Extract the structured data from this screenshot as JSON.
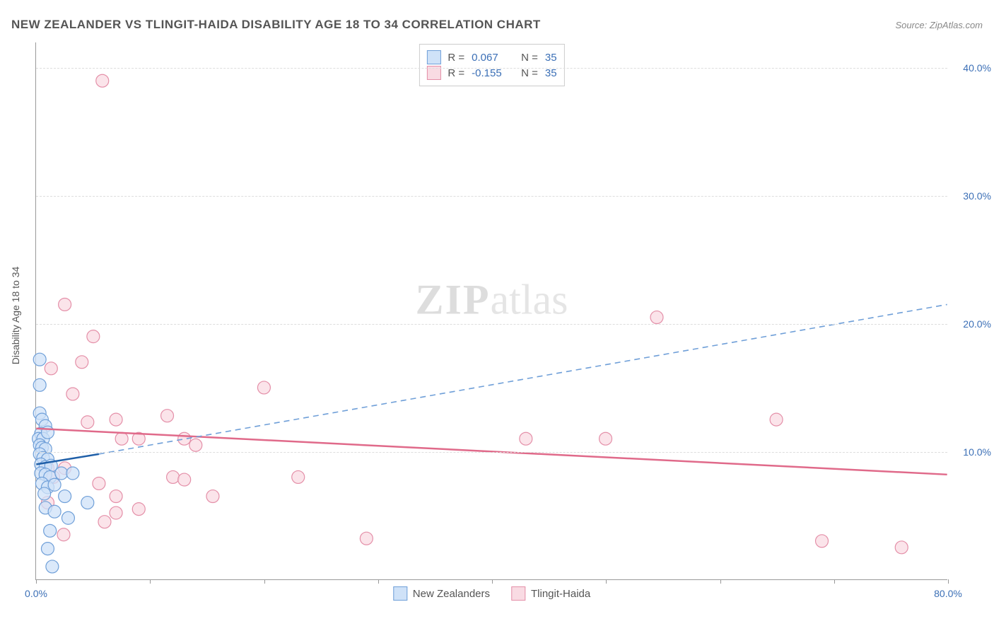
{
  "title": "NEW ZEALANDER VS TLINGIT-HAIDA DISABILITY AGE 18 TO 34 CORRELATION CHART",
  "source": "Source: ZipAtlas.com",
  "y_axis_label": "Disability Age 18 to 34",
  "watermark_a": "ZIP",
  "watermark_b": "atlas",
  "chart": {
    "type": "scatter",
    "xlim": [
      0,
      80
    ],
    "ylim": [
      0,
      42
    ],
    "x_ticks": [
      0,
      10,
      20,
      30,
      40,
      50,
      60,
      70,
      80
    ],
    "x_tick_labels_shown": {
      "0": "0.0%",
      "80": "80.0%"
    },
    "y_ticks": [
      10,
      20,
      30,
      40
    ],
    "y_tick_labels": {
      "10": "10.0%",
      "20": "20.0%",
      "30": "30.0%",
      "40": "40.0%"
    },
    "grid_color": "#dddddd",
    "axis_color": "#999999",
    "background_color": "#ffffff",
    "tick_label_color": "#3b6fb6",
    "tick_fontsize": 14,
    "title_fontsize": 17,
    "title_color": "#555555"
  },
  "stat_legend": {
    "rows": [
      {
        "swatch": "blue",
        "r_label": "R =",
        "r_value": "0.067",
        "n_label": "N =",
        "n_value": "35"
      },
      {
        "swatch": "pink",
        "r_label": "R =",
        "r_value": "-0.155",
        "n_label": "N =",
        "n_value": "35"
      }
    ]
  },
  "bottom_legend": {
    "items": [
      {
        "swatch": "blue",
        "label": "New Zealanders"
      },
      {
        "swatch": "pink",
        "label": "Tlingit-Haida"
      }
    ]
  },
  "series": {
    "blue": {
      "marker_fill": "#cfe2f8",
      "marker_stroke": "#6f9fd8",
      "marker_radius": 9,
      "line_color": "#1f5fa8",
      "line_width": 2.5,
      "dash_color": "#6f9fd8",
      "points": [
        [
          0.3,
          17.2
        ],
        [
          0.3,
          15.2
        ],
        [
          0.3,
          13.0
        ],
        [
          0.5,
          12.5
        ],
        [
          0.8,
          12.0
        ],
        [
          0.4,
          11.4
        ],
        [
          0.2,
          11.0
        ],
        [
          0.6,
          11.0
        ],
        [
          1.0,
          11.5
        ],
        [
          0.3,
          10.5
        ],
        [
          0.5,
          10.3
        ],
        [
          0.8,
          10.2
        ],
        [
          0.3,
          9.8
        ],
        [
          0.6,
          9.5
        ],
        [
          1.0,
          9.4
        ],
        [
          0.4,
          9.0
        ],
        [
          0.8,
          8.8
        ],
        [
          1.3,
          8.9
        ],
        [
          0.4,
          8.3
        ],
        [
          0.8,
          8.2
        ],
        [
          1.2,
          8.0
        ],
        [
          2.2,
          8.3
        ],
        [
          3.2,
          8.3
        ],
        [
          0.5,
          7.5
        ],
        [
          1.0,
          7.2
        ],
        [
          1.6,
          7.4
        ],
        [
          0.7,
          6.7
        ],
        [
          2.5,
          6.5
        ],
        [
          4.5,
          6.0
        ],
        [
          0.8,
          5.6
        ],
        [
          1.6,
          5.3
        ],
        [
          2.8,
          4.8
        ],
        [
          1.2,
          3.8
        ],
        [
          1.0,
          2.4
        ],
        [
          1.4,
          1.0
        ]
      ],
      "trend_solid": {
        "x1": 0,
        "y1": 9.0,
        "x2": 5.5,
        "y2": 9.8
      },
      "trend_dashed": {
        "x1": 5.5,
        "y1": 9.8,
        "x2": 80,
        "y2": 21.5
      }
    },
    "pink": {
      "marker_fill": "#f9dbe3",
      "marker_stroke": "#e48fa8",
      "marker_radius": 9,
      "line_color": "#e06a8a",
      "line_width": 2.5,
      "points": [
        [
          5.8,
          39.0
        ],
        [
          2.5,
          21.5
        ],
        [
          5.0,
          19.0
        ],
        [
          4.0,
          17.0
        ],
        [
          1.3,
          16.5
        ],
        [
          3.2,
          14.5
        ],
        [
          20.0,
          15.0
        ],
        [
          11.5,
          12.8
        ],
        [
          7.0,
          12.5
        ],
        [
          4.5,
          12.3
        ],
        [
          54.5,
          20.5
        ],
        [
          7.5,
          11.0
        ],
        [
          9.0,
          11.0
        ],
        [
          13.0,
          11.0
        ],
        [
          43.0,
          11.0
        ],
        [
          50.0,
          11.0
        ],
        [
          1.0,
          8.7
        ],
        [
          2.5,
          8.7
        ],
        [
          1.5,
          8.0
        ],
        [
          12.0,
          8.0
        ],
        [
          13.0,
          7.8
        ],
        [
          23.0,
          8.0
        ],
        [
          5.5,
          7.5
        ],
        [
          7.0,
          6.5
        ],
        [
          15.5,
          6.5
        ],
        [
          1.0,
          6.0
        ],
        [
          9.0,
          5.5
        ],
        [
          7.0,
          5.2
        ],
        [
          6.0,
          4.5
        ],
        [
          2.4,
          3.5
        ],
        [
          29.0,
          3.2
        ],
        [
          65.0,
          12.5
        ],
        [
          69.0,
          3.0
        ],
        [
          76.0,
          2.5
        ],
        [
          14.0,
          10.5
        ]
      ],
      "trend_solid": {
        "x1": 0,
        "y1": 11.8,
        "x2": 80,
        "y2": 8.2
      }
    }
  }
}
